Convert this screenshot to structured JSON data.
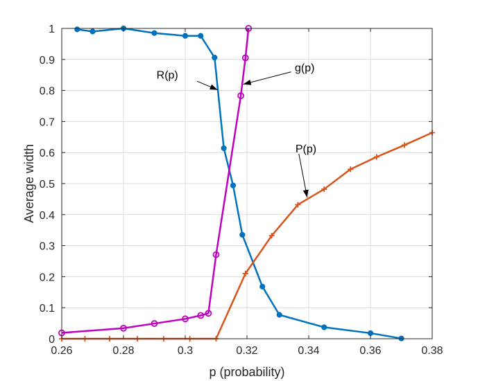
{
  "chart_data": {
    "type": "line",
    "xlabel": "p (probability)",
    "ylabel": "Average width",
    "xlim": [
      0.26,
      0.38
    ],
    "ylim": [
      0,
      1
    ],
    "xticks": [
      0.26,
      0.28,
      0.3,
      0.32,
      0.34,
      0.36,
      0.38
    ],
    "xtick_labels": [
      "0.26",
      "0.28",
      "0.3",
      "0.32",
      "0.34",
      "0.36",
      "0.38"
    ],
    "yticks": [
      0,
      0.1,
      0.2,
      0.3,
      0.4,
      0.5,
      0.6,
      0.7,
      0.8,
      0.9,
      1
    ],
    "ytick_labels": [
      "0",
      "0.1",
      "0.2",
      "0.3",
      "0.4",
      "0.5",
      "0.6",
      "0.7",
      "0.8",
      "0.9",
      "1"
    ],
    "grid": true,
    "series": [
      {
        "name": "R(p)",
        "color": "#0072BD",
        "marker": "filled-dot",
        "x": [
          0.265,
          0.27,
          0.28,
          0.29,
          0.3,
          0.305,
          0.3095,
          0.3125,
          0.3155,
          0.3185,
          0.325,
          0.3305,
          0.345,
          0.36,
          0.37
        ],
        "y": [
          0.997,
          0.99,
          1.0,
          0.985,
          0.976,
          0.976,
          0.906,
          0.614,
          0.494,
          0.335,
          0.168,
          0.077,
          0.037,
          0.018,
          0.001
        ]
      },
      {
        "name": "g(p)",
        "color": "#BF00BF",
        "marker": "open-circle",
        "x": [
          0.26,
          0.28,
          0.29,
          0.3,
          0.305,
          0.3075,
          0.31,
          0.318,
          0.3195,
          0.3205
        ],
        "y": [
          0.019,
          0.034,
          0.049,
          0.064,
          0.075,
          0.082,
          0.271,
          0.783,
          0.905,
          1.0
        ]
      },
      {
        "name": "P(p)",
        "color": "#D95319",
        "marker": "plus",
        "x": [
          0.26,
          0.2675,
          0.2755,
          0.2845,
          0.293,
          0.3015,
          0.31,
          0.3195,
          0.328,
          0.3365,
          0.345,
          0.3535,
          0.362,
          0.371,
          0.38
        ],
        "y": [
          0.0,
          0.0,
          0.0,
          0.0,
          0.0,
          0.0,
          0.0,
          0.21,
          0.332,
          0.432,
          0.482,
          0.546,
          0.586,
          0.624,
          0.664
        ]
      }
    ],
    "annotations": [
      {
        "text": "R(p)",
        "label_x": 0.2977,
        "label_y": 0.838,
        "from_x": 0.3038,
        "from_y": 0.83,
        "to_x": 0.3105,
        "to_y": 0.802
      },
      {
        "text": "g(p)",
        "label_x": 0.3355,
        "label_y": 0.862,
        "from_x": 0.3343,
        "from_y": 0.86,
        "to_x": 0.3188,
        "to_y": 0.82
      },
      {
        "text": "P(p)",
        "label_x": 0.3357,
        "label_y": 0.6,
        "from_x": 0.3368,
        "from_y": 0.596,
        "to_x": 0.3395,
        "to_y": 0.455
      }
    ]
  }
}
